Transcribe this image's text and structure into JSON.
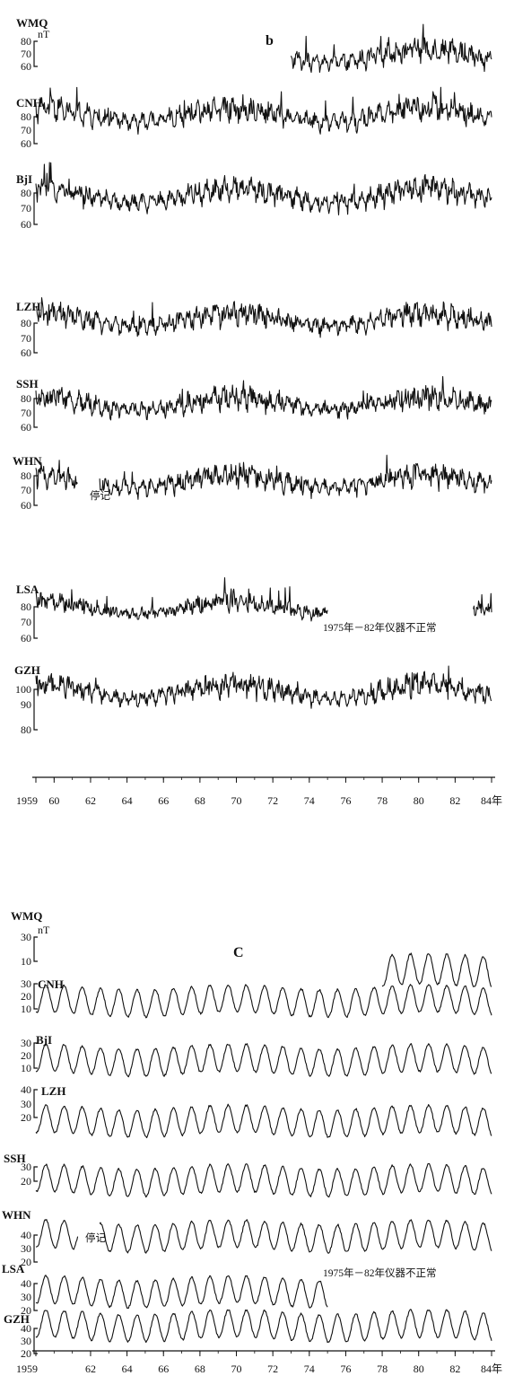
{
  "chart_data": [
    {
      "panel_label": "b",
      "type": "line",
      "unit": "nT",
      "x_ticks": [
        "1959",
        "60",
        "62",
        "64",
        "66",
        "68",
        "70",
        "72",
        "74",
        "76",
        "78",
        "80",
        "82",
        "84年"
      ],
      "xlim": [
        1959,
        1984
      ],
      "annotations": [
        {
          "text": "停记",
          "station": "WHN"
        },
        {
          "text": "1975年－82年仪器不正常",
          "station": "LSA"
        }
      ],
      "series": [
        {
          "name": "WMQ",
          "ticks": [
            "80",
            "70",
            "60"
          ],
          "range": [
            1973.0,
            1984.0
          ],
          "base": 66,
          "amp": 6,
          "solar": 8,
          "noise": 3
        },
        {
          "name": "CNH",
          "ticks": [
            "80",
            "70",
            "60"
          ],
          "range": [
            1959.0,
            1984.0
          ],
          "base": 64,
          "amp": 7,
          "solar": 8,
          "noise": 3
        },
        {
          "name": "BjI",
          "ticks": [
            "80",
            "70",
            "60"
          ],
          "range": [
            1959.0,
            1984.0
          ],
          "base": 62,
          "amp": 7,
          "solar": 8,
          "noise": 3
        },
        {
          "name": "LZH",
          "ticks": [
            "80",
            "70",
            "60"
          ],
          "range": [
            1959.0,
            1984.0
          ],
          "base": 63,
          "amp": 6,
          "solar": 7,
          "noise": 3
        },
        {
          "name": "SSH",
          "ticks": [
            "80",
            "70",
            "60"
          ],
          "range": [
            1959.0,
            1984.0
          ],
          "base": 62,
          "amp": 6,
          "solar": 7,
          "noise": 3
        },
        {
          "name": "WHN",
          "ticks": [
            "80",
            "70",
            "60"
          ],
          "range": [
            1959.0,
            1984.0
          ],
          "gap": [
            1961.3,
            1962.5
          ],
          "base": 61,
          "amp": 6,
          "solar": 7,
          "noise": 3
        },
        {
          "name": "LSA",
          "ticks": [
            "80",
            "70",
            "60"
          ],
          "range": [
            1959.0,
            1975.0
          ],
          "extra": [
            1983.0,
            1984.0
          ],
          "base": 62,
          "amp": 4,
          "solar": 7,
          "noise": 2.5
        },
        {
          "name": "GZH",
          "ticks": [
            "100",
            "90",
            "80"
          ],
          "range": [
            1959.0,
            1984.0
          ],
          "base": 70,
          "amp": 6,
          "solar": 8,
          "noise": 3
        }
      ]
    },
    {
      "panel_label": "c",
      "type": "line",
      "unit": "nT",
      "x_ticks": [
        "1959",
        "62",
        "64",
        "66",
        "68",
        "70",
        "72",
        "74",
        "76",
        "78",
        "80",
        "82",
        "84年"
      ],
      "xlim": [
        1959,
        1984
      ],
      "annotations": [
        {
          "text": "停记",
          "station": "WHN"
        },
        {
          "text": "1975年－82年仪器不正常",
          "station": "LSA"
        }
      ],
      "series": [
        {
          "name": "WMQ",
          "ticks": [
            "30",
            "10"
          ],
          "range": [
            1978.0,
            1984.0
          ],
          "base": 20,
          "amp": 9,
          "solar": 3,
          "noise": 1
        },
        {
          "name": "CNH",
          "ticks": [
            "30",
            "20",
            "10"
          ],
          "range": [
            1959.0,
            1984.0
          ],
          "base": 20,
          "amp": 8,
          "solar": 3,
          "noise": 1
        },
        {
          "name": "BjI",
          "ticks": [
            "30",
            "20",
            "10"
          ],
          "range": [
            1959.0,
            1984.0
          ],
          "base": 19,
          "amp": 8,
          "solar": 3,
          "noise": 1
        },
        {
          "name": "LZH",
          "ticks": [
            "40",
            "30",
            "20"
          ],
          "range": [
            1959.0,
            1984.0
          ],
          "base": 28,
          "amp": 8,
          "solar": 3,
          "noise": 1
        },
        {
          "name": "SSH",
          "ticks": [
            "30",
            "20"
          ],
          "range": [
            1959.0,
            1984.0
          ],
          "base": 27,
          "amp": 8,
          "solar": 3,
          "noise": 1
        },
        {
          "name": "WHN",
          "ticks": [
            "40",
            "30",
            "20"
          ],
          "range": [
            1959.0,
            1984.0
          ],
          "gap": [
            1961.3,
            1962.5
          ],
          "base": 28,
          "amp": 8,
          "solar": 3,
          "noise": 1
        },
        {
          "name": "LSA",
          "ticks": [
            "40",
            "30",
            "20"
          ],
          "range": [
            1959.0,
            1975.0
          ],
          "base": 28,
          "amp": 8,
          "solar": 3,
          "noise": 1
        },
        {
          "name": "GZH",
          "ticks": [
            "40",
            "30",
            "20"
          ],
          "range": [
            1959.0,
            1984.0
          ],
          "base": 28,
          "amp": 8,
          "solar": 3,
          "noise": 1
        }
      ]
    }
  ]
}
